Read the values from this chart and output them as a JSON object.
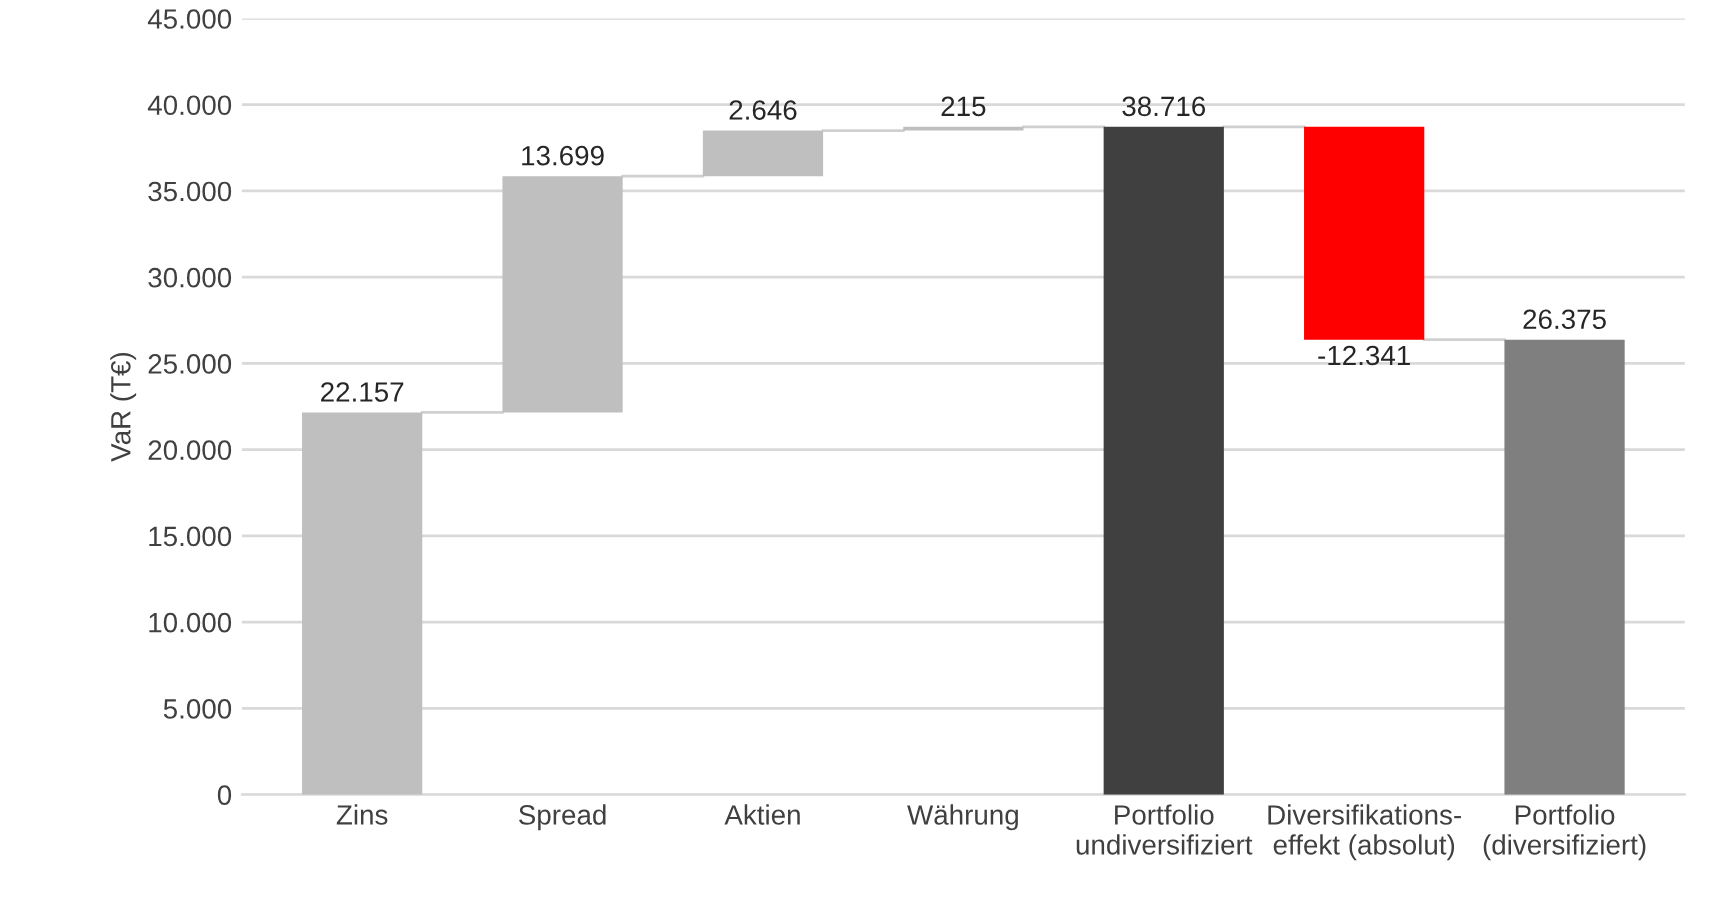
{
  "chart_data": {
    "type": "bar",
    "ylabel": "VaR (T€)",
    "categories": [
      "Zins",
      "Spread",
      "Aktien",
      "Währung",
      "Portfolio\nundiversifiziert",
      "Diversifikations-\neffekt (absolut)",
      "Portfolio\n(diversifiziert)"
    ],
    "values": [
      22157,
      13699,
      2646,
      215,
      38716,
      -12341,
      26375
    ],
    "base": [
      0,
      22157,
      35856,
      38502,
      0,
      38716,
      0
    ],
    "colors": [
      "#bfbfbf",
      "#bfbfbf",
      "#bfbfbf",
      "#bfbfbf",
      "#404040",
      "#ff0000",
      "#7f7f7f"
    ],
    "value_labels": [
      "22.157",
      "13.699",
      "2.646",
      "215",
      "38.716",
      "-12.341",
      "26.375"
    ],
    "ylim": [
      0,
      45000
    ],
    "yticks": [
      {
        "value": 0,
        "label": "0"
      },
      {
        "value": 5000,
        "label": "5.000"
      },
      {
        "value": 10000,
        "label": "10.000"
      },
      {
        "value": 15000,
        "label": "15.000"
      },
      {
        "value": 20000,
        "label": "20.000"
      },
      {
        "value": 25000,
        "label": "25.000"
      },
      {
        "value": 30000,
        "label": "30.000"
      },
      {
        "value": 35000,
        "label": "35.000"
      },
      {
        "value": 40000,
        "label": "40.000"
      },
      {
        "value": 45000,
        "label": "45.000"
      }
    ],
    "grid": "y",
    "legend": false
  }
}
